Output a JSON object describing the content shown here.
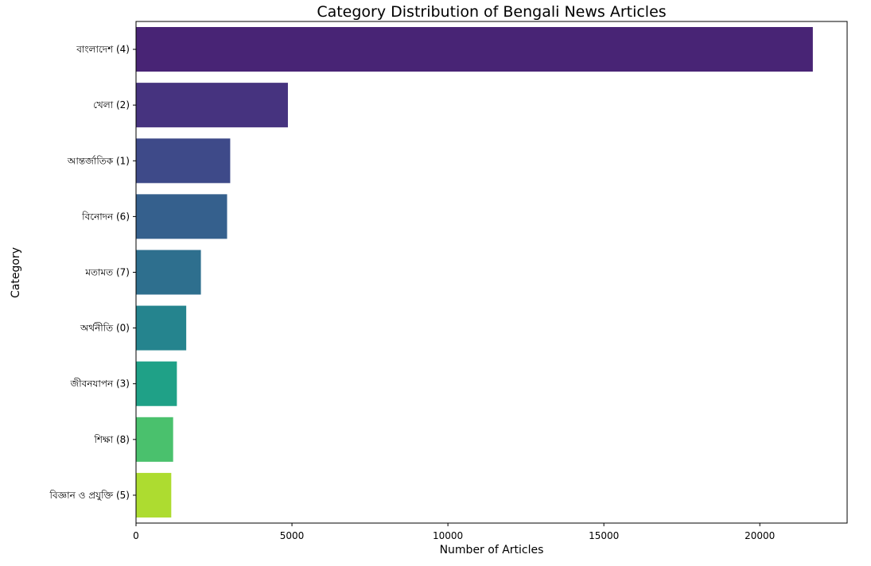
{
  "chart_data": {
    "type": "bar",
    "orientation": "horizontal",
    "title": "Category Distribution of Bengali News Articles",
    "xlabel": "Number of Articles",
    "ylabel": "Category",
    "xlim": [
      0,
      22800
    ],
    "xticks": [
      0,
      5000,
      10000,
      15000,
      20000
    ],
    "grid": false,
    "categories": [
      "বাংলাদেশ (4)",
      "খেলা (2)",
      "আন্তর্জাতিক (1)",
      "বিনোদন (6)",
      "মতামত (7)",
      "অর্থনীতি (0)",
      "জীবনযাপন (3)",
      "শিক্ষা (8)",
      "বিজ্ঞান ও প্রযুক্তি (5)"
    ],
    "values": [
      21700,
      4870,
      3020,
      2920,
      2080,
      1610,
      1310,
      1190,
      1130
    ],
    "colors": [
      "#482475",
      "#46337f",
      "#3e4a89",
      "#35608d",
      "#2e6f8e",
      "#25848e",
      "#1fa187",
      "#4ac16d",
      "#addc30"
    ]
  }
}
